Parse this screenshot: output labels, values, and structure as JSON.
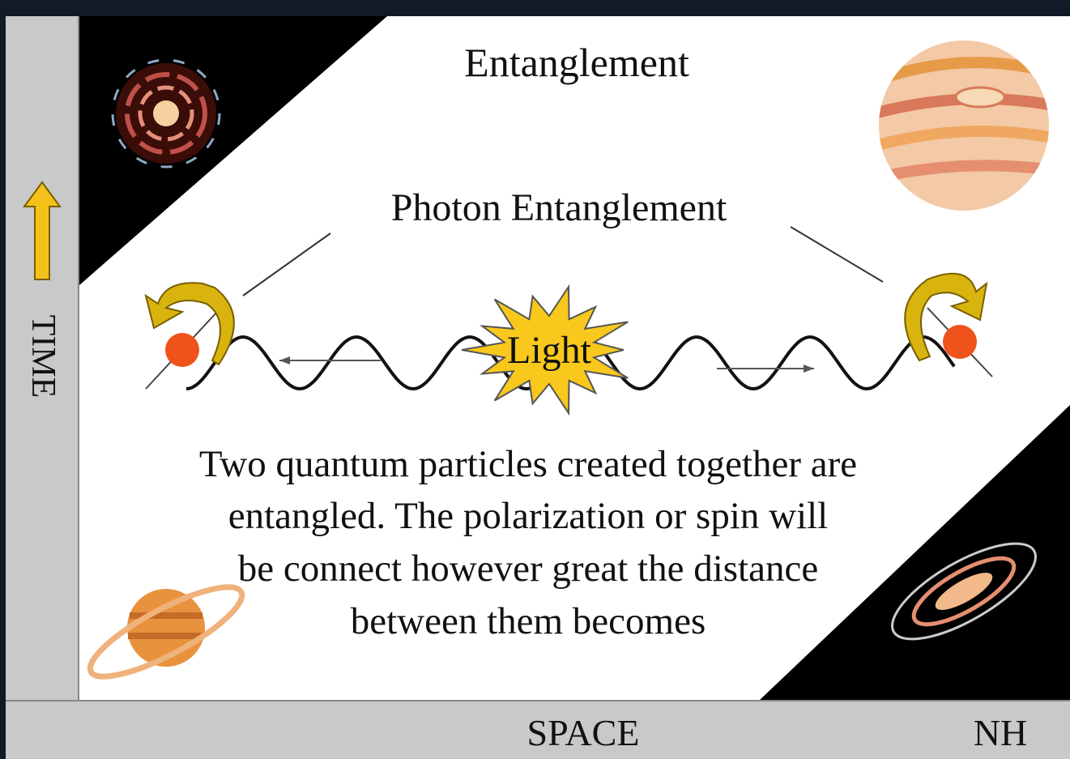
{
  "title": "Entanglement",
  "subtitle": "Photon Entanglement",
  "center_label": "Light",
  "description": [
    "Two quantum particles created together are",
    "entangled. The polarization or spin will",
    "be connect however great the distance",
    "between them  becomes"
  ],
  "axes": {
    "y": "TIME",
    "x": "SPACE"
  },
  "credit": "NH"
}
